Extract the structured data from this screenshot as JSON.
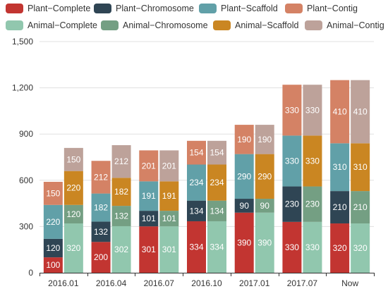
{
  "chart_data": {
    "type": "bar",
    "stacked": true,
    "categories": [
      "2016.01",
      "2016.04",
      "2016.07",
      "2016.10",
      "2017.01",
      "2017.07",
      "Now"
    ],
    "ylim": [
      0,
      1500
    ],
    "yticks": [
      "0",
      "300",
      "600",
      "900",
      "1,200",
      "1,500"
    ],
    "ytick_values": [
      0,
      300,
      600,
      900,
      1200,
      1500
    ],
    "grid": true,
    "legend_position": "top",
    "stacks": [
      {
        "name": "Plant",
        "series": [
          {
            "name": "Plant−Complete",
            "color": "#c23531",
            "values": [
              100,
              200,
              301,
              334,
              390,
              330,
              320
            ]
          },
          {
            "name": "Plant−Chromosome",
            "color": "#2f4554",
            "values": [
              120,
              132,
              101,
              134,
              90,
              230,
              210
            ]
          },
          {
            "name": "Plant−Scaffold",
            "color": "#61a0a8",
            "values": [
              220,
              182,
              191,
              234,
              290,
              330,
              310
            ]
          },
          {
            "name": "Plant−Contig",
            "color": "#d48265",
            "values": [
              150,
              212,
              201,
              154,
              190,
              330,
              410
            ]
          }
        ]
      },
      {
        "name": "Animal",
        "series": [
          {
            "name": "Animal−Complete",
            "color": "#91c7ae",
            "values": [
              320,
              302,
              301,
              334,
              390,
              330,
              320
            ]
          },
          {
            "name": "Animal−Chromosome",
            "color": "#749f83",
            "values": [
              120,
              132,
              101,
              134,
              90,
              230,
              210
            ]
          },
          {
            "name": "Animal−Scaffold",
            "color": "#ca8622",
            "values": [
              220,
              182,
              191,
              234,
              290,
              330,
              310
            ]
          },
          {
            "name": "Animal−Contig",
            "color": "#bda29a",
            "values": [
              150,
              212,
              201,
              154,
              190,
              330,
              410
            ]
          }
        ]
      }
    ]
  }
}
